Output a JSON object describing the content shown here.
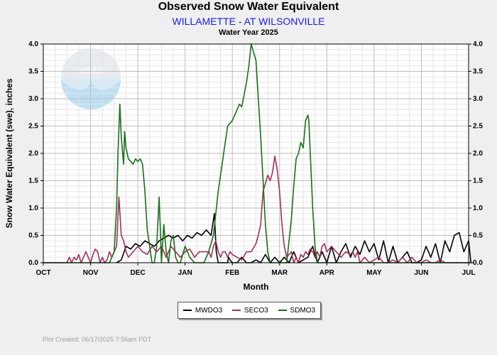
{
  "header": {
    "title": "Observed Snow Water Equivalent",
    "subtitle": "WILLAMETTE - AT WILSONVILLE",
    "period": "Water Year 2025"
  },
  "logo_text": "NOAA",
  "footer": "Plot Created: 06/17/2025 7:56am PDT",
  "chart_data": {
    "type": "line",
    "title": "Observed Snow Water Equivalent",
    "xlabel": "Month",
    "ylabel": "Snow Water Equivalent (swe),  inches",
    "categories": [
      "OCT",
      "NOV",
      "DEC",
      "JAN",
      "FEB",
      "MAR",
      "APR",
      "MAY",
      "JUN",
      "JUL"
    ],
    "ylim": [
      0,
      4
    ],
    "yticks": [
      "0.0",
      "0.5",
      "1.0",
      "1.5",
      "2.0",
      "2.5",
      "3.0",
      "3.5",
      "4.0"
    ],
    "grid": true,
    "legend_position": "bottom-center",
    "series": [
      {
        "name": "MWDO3",
        "color": "#000000",
        "x": [
          1.55,
          1.65,
          1.75,
          1.85,
          1.95,
          2.05,
          2.15,
          2.25,
          2.35,
          2.45,
          2.55,
          2.65,
          2.75,
          2.85,
          2.95,
          3.05,
          3.15,
          3.25,
          3.35,
          3.45,
          3.55,
          3.62,
          3.66,
          3.7,
          3.75,
          3.8,
          3.85,
          3.9,
          3.92,
          3.95,
          4.0,
          4.1,
          4.2,
          4.3,
          4.4,
          4.5,
          4.6,
          4.7,
          4.8,
          4.9,
          5.0,
          5.1,
          5.2,
          5.3,
          5.4,
          5.5,
          5.6,
          5.7,
          5.8,
          5.9,
          6.0,
          6.1,
          6.2,
          6.3,
          6.4,
          6.5,
          6.6,
          6.7,
          6.8,
          6.9,
          7.0,
          7.1,
          7.2,
          7.3,
          7.4,
          7.5,
          7.6,
          7.7,
          7.8,
          7.9,
          8.0,
          8.1,
          8.2,
          8.3,
          8.4,
          8.5,
          8.6,
          8.7,
          8.8,
          8.9,
          9.0,
          9.05
        ],
        "y": [
          0,
          0.05,
          0.3,
          0.25,
          0.35,
          0.3,
          0.4,
          0.35,
          0.3,
          0.4,
          0.45,
          0.5,
          0.45,
          0.5,
          0.4,
          0.5,
          0.45,
          0.55,
          0.5,
          0.6,
          0.5,
          0.9,
          0.2,
          0,
          0,
          0,
          0,
          0,
          0.1,
          0.05,
          0,
          0,
          0.1,
          0,
          0,
          0.05,
          0,
          0.15,
          0,
          0.1,
          0,
          0.1,
          0,
          0.2,
          0,
          0.05,
          0.1,
          0.3,
          0,
          0.2,
          0,
          0.3,
          0,
          0.2,
          0.35,
          0.1,
          0.3,
          0.15,
          0.4,
          0.2,
          0.35,
          0.05,
          0.4,
          0,
          0.3,
          0,
          0.1,
          0.2,
          0,
          0,
          0.05,
          0.3,
          0.1,
          0.35,
          0,
          0.4,
          0.2,
          0.5,
          0.55,
          0.2,
          0.4,
          0
        ]
      },
      {
        "name": "SECO3",
        "color": "#a0305a",
        "x": [
          0,
          0.5,
          0.55,
          0.6,
          0.65,
          0.7,
          0.75,
          0.8,
          0.85,
          0.9,
          0.95,
          1.0,
          1.05,
          1.1,
          1.15,
          1.2,
          1.25,
          1.3,
          1.35,
          1.4,
          1.45,
          1.5,
          1.55,
          1.6,
          1.65,
          1.7,
          1.75,
          1.8,
          1.9,
          2.0,
          2.1,
          2.2,
          2.3,
          2.4,
          2.5,
          2.6,
          2.7,
          2.8,
          2.9,
          3.0,
          3.1,
          3.2,
          3.3,
          3.4,
          3.5,
          3.55,
          3.6,
          3.65,
          3.7,
          3.75,
          3.8,
          3.85,
          3.9,
          3.95,
          4.0,
          4.1,
          4.2,
          4.3,
          4.4,
          4.5,
          4.55,
          4.6,
          4.62,
          4.65,
          4.7,
          4.75,
          4.8,
          4.85,
          4.9,
          4.95,
          5.0,
          5.05,
          5.1,
          5.15,
          5.2,
          5.25,
          5.3,
          5.35,
          5.4,
          5.45,
          5.5,
          5.55,
          5.6,
          5.65,
          5.7,
          5.75,
          5.8,
          5.85,
          5.9,
          5.95,
          6.0,
          6.1,
          6.2,
          6.3,
          6.4,
          6.5,
          6.55,
          6.6,
          6.65,
          6.7,
          6.8,
          6.9,
          7.0,
          7.1,
          7.2,
          7.3,
          7.4,
          7.5,
          7.6,
          7.7,
          7.8,
          7.9,
          8.0,
          8.1,
          8.2,
          8.3,
          8.4,
          8.5,
          8.6,
          8.7,
          8.8,
          8.9,
          9.0,
          9.1
        ],
        "y": [
          0,
          0,
          0.1,
          0,
          0.1,
          0.05,
          0.15,
          0,
          0.1,
          0.2,
          0.1,
          0,
          0.15,
          0.25,
          0.2,
          0,
          0.1,
          0,
          0.05,
          0.2,
          0.1,
          0.2,
          0.3,
          1.2,
          0.5,
          0.4,
          0.2,
          0.1,
          0.2,
          0.3,
          0.2,
          0.15,
          0.3,
          0.2,
          0.3,
          0.1,
          0.3,
          0.2,
          0.1,
          0.2,
          0.25,
          0.1,
          0.2,
          0.2,
          0.2,
          0.1,
          0.3,
          0.4,
          0.2,
          0.1,
          0.2,
          0.2,
          0.1,
          0.2,
          0.15,
          0.1,
          0.05,
          0.2,
          0.2,
          0.35,
          0.5,
          0.7,
          0.95,
          1.3,
          1.45,
          1.6,
          1.5,
          1.65,
          1.95,
          1.7,
          1.3,
          0.7,
          0.3,
          0.1,
          0.15,
          0.2,
          0,
          0.1,
          0,
          0.15,
          0.1,
          0.2,
          0.15,
          0.25,
          0.2,
          0.1,
          0.2,
          0.1,
          0.3,
          0.35,
          0.2,
          0.3,
          0.2,
          0.1,
          0.2,
          0.15,
          0.2,
          0.1,
          0.2,
          0,
          0.1,
          0,
          0.05,
          0.1,
          0,
          0,
          0.05,
          0,
          0.1,
          0,
          0.1,
          0,
          0,
          0.05,
          0,
          0,
          0.05,
          0,
          0,
          0,
          0,
          0,
          0,
          0
        ]
      },
      {
        "name": "SDMO3",
        "color": "#1a6e1a",
        "x": [
          0,
          1.4,
          1.5,
          1.55,
          1.58,
          1.62,
          1.65,
          1.7,
          1.72,
          1.75,
          1.8,
          1.85,
          1.9,
          1.95,
          2.0,
          2.05,
          2.1,
          2.15,
          2.2,
          2.3,
          2.35,
          2.4,
          2.45,
          2.48,
          2.5,
          2.55,
          2.6,
          2.65,
          2.7,
          2.75,
          2.8,
          2.85,
          2.9,
          3.0,
          3.1,
          3.2,
          3.3,
          3.4,
          3.5,
          3.6,
          3.7,
          3.8,
          3.9,
          4.0,
          4.1,
          4.15,
          4.2,
          4.3,
          4.35,
          4.4,
          4.5,
          4.55,
          4.6,
          4.65,
          4.7,
          4.75,
          4.8,
          4.85,
          4.9,
          4.95,
          5.0,
          5.05,
          5.1,
          5.15,
          5.2,
          5.25,
          5.3,
          5.35,
          5.4,
          5.45,
          5.5,
          5.55,
          5.6,
          5.62,
          5.65,
          5.7,
          5.75,
          5.8,
          5.85,
          5.9,
          5.95,
          6.0,
          6.1,
          9.1
        ],
        "y": [
          0,
          0,
          0.2,
          1.0,
          2.0,
          2.9,
          2.3,
          1.8,
          2.4,
          2.1,
          1.9,
          1.85,
          1.8,
          1.9,
          1.85,
          1.9,
          1.8,
          1.3,
          0.6,
          0,
          0,
          0.3,
          1.2,
          0.5,
          0,
          0.7,
          0.2,
          0,
          0.4,
          0.5,
          0.1,
          0,
          0,
          0.3,
          0.1,
          0,
          0,
          0,
          0.2,
          0.5,
          1.3,
          1.9,
          2.5,
          2.6,
          2.8,
          2.9,
          2.85,
          3.3,
          3.6,
          4.0,
          3.7,
          3.0,
          2.3,
          1.5,
          0.7,
          0.2,
          0,
          0,
          0,
          0,
          0,
          0,
          0,
          0,
          0.4,
          0.8,
          1.4,
          1.9,
          2.0,
          2.2,
          2.1,
          2.6,
          2.7,
          2.6,
          2.0,
          1.0,
          0.3,
          0,
          0,
          0,
          0,
          0,
          0,
          0
        ]
      }
    ]
  }
}
